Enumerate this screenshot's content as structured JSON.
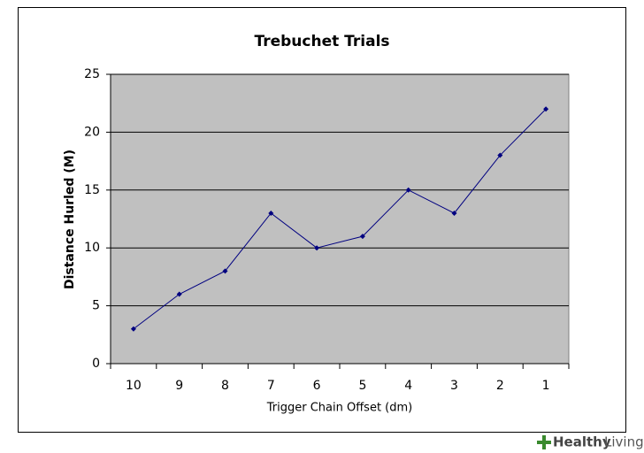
{
  "chart_data": {
    "type": "line",
    "title": "Trebuchet Trials",
    "x_label": "Trigger Chain Offset (dm)",
    "y_label": "Distance Hurled (M)",
    "categories": [
      "10",
      "9",
      "8",
      "7",
      "6",
      "5",
      "4",
      "3",
      "2",
      "1"
    ],
    "series": [
      {
        "name": "Distance Hurled (M)",
        "color": "#000080",
        "values": [
          3,
          6,
          8,
          13,
          10,
          11,
          15,
          13,
          18,
          22
        ]
      }
    ],
    "ylim": [
      0,
      25
    ],
    "yticks": [
      0,
      5,
      10,
      15,
      20,
      25
    ],
    "grid": true,
    "plot_background": "#c0c0c0"
  },
  "watermark": {
    "brand": "Healthy",
    "section": "Living"
  }
}
